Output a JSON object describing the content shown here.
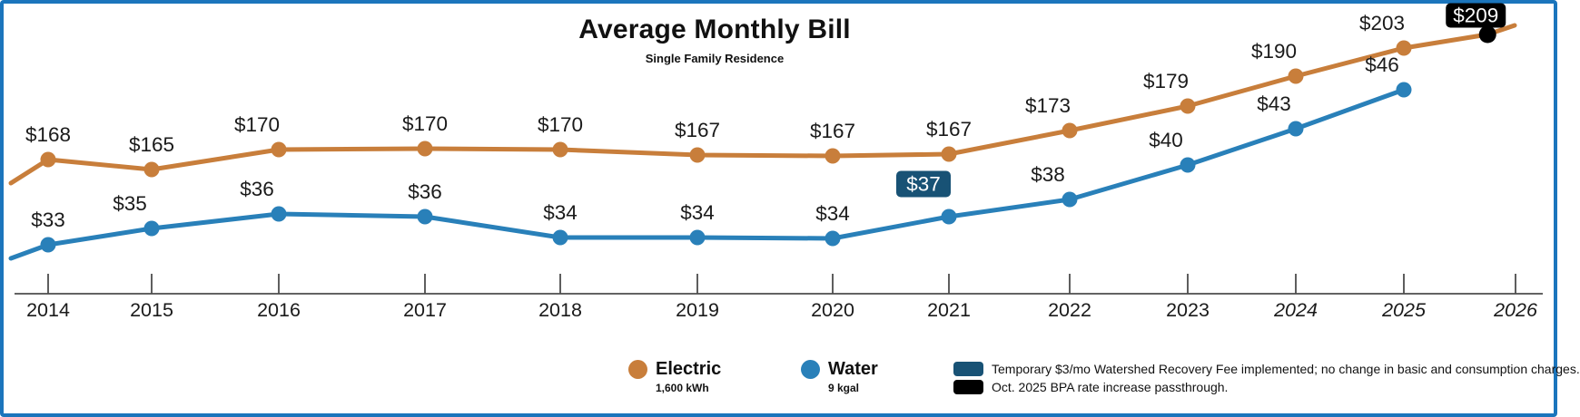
{
  "chart_data": {
    "type": "line",
    "title": "Average Monthly Bill",
    "subtitle": "Single Family Residence",
    "x_axis": {
      "ticks": [
        {
          "label": "2014",
          "italic": false
        },
        {
          "label": "2015",
          "italic": false
        },
        {
          "label": "2016",
          "italic": false
        },
        {
          "label": "2017",
          "italic": false
        },
        {
          "label": "2018",
          "italic": false
        },
        {
          "label": "2019",
          "italic": false
        },
        {
          "label": "2020",
          "italic": false
        },
        {
          "label": "2021",
          "italic": false
        },
        {
          "label": "2022",
          "italic": false
        },
        {
          "label": "2023",
          "italic": false
        },
        {
          "label": "2024",
          "italic": true
        },
        {
          "label": "2025",
          "italic": true
        },
        {
          "label": "2026",
          "italic": true
        }
      ]
    },
    "series": [
      {
        "name": "Electric",
        "sublabel": "1,600 kWh",
        "color": "#C87E3B",
        "points": [
          {
            "year": 2014,
            "value": 168,
            "label": "$168"
          },
          {
            "year": 2015,
            "value": 165,
            "label": "$165"
          },
          {
            "year": 2016,
            "value": 170,
            "label": "$170"
          },
          {
            "year": 2017,
            "value": 170,
            "label": "$170"
          },
          {
            "year": 2018,
            "value": 170,
            "label": "$170"
          },
          {
            "year": 2019,
            "value": 167,
            "label": "$167"
          },
          {
            "year": 2020,
            "value": 167,
            "label": "$167"
          },
          {
            "year": 2021,
            "value": 167,
            "label": "$167"
          },
          {
            "year": 2022,
            "value": 173,
            "label": "$173"
          },
          {
            "year": 2023,
            "value": 179,
            "label": "$179"
          },
          {
            "year": 2024,
            "value": 190,
            "label": "$190"
          },
          {
            "year": 2025,
            "value": 203,
            "label": "$203"
          },
          {
            "year": 2025.75,
            "value": 209,
            "label": "$209",
            "badge": "black",
            "marker": "black"
          }
        ]
      },
      {
        "name": "Water",
        "sublabel": "9 kgal",
        "color": "#2980B9",
        "points": [
          {
            "year": 2014,
            "value": 33,
            "label": "$33"
          },
          {
            "year": 2015,
            "value": 35,
            "label": "$35"
          },
          {
            "year": 2016,
            "value": 36,
            "label": "$36"
          },
          {
            "year": 2017,
            "value": 36,
            "label": "$36"
          },
          {
            "year": 2018,
            "value": 34,
            "label": "$34"
          },
          {
            "year": 2019,
            "value": 34,
            "label": "$34"
          },
          {
            "year": 2020,
            "value": 34,
            "label": "$34"
          },
          {
            "year": 2021,
            "value": 37,
            "label": "$37",
            "badge": "navy"
          },
          {
            "year": 2022,
            "value": 38,
            "label": "$38"
          },
          {
            "year": 2023,
            "value": 40,
            "label": "$40"
          },
          {
            "year": 2024,
            "value": 43,
            "label": "$43"
          },
          {
            "year": 2025,
            "value": 46,
            "label": "$46"
          }
        ]
      }
    ],
    "annotations": [
      {
        "swatch": "navy",
        "text": "Temporary $3/mo Watershed Recovery Fee implemented; no change in basic and consumption charges."
      },
      {
        "swatch": "black",
        "text": "Oct. 2025 BPA rate increase passthrough."
      }
    ],
    "colors": {
      "electric": "#C87E3B",
      "water": "#2980B9",
      "navy": "#185275",
      "black": "#000000",
      "frame_border": "#1B75BC",
      "axis": "#4D4D4D",
      "text": "#1A1A1A"
    },
    "legend_position": "bottom"
  }
}
